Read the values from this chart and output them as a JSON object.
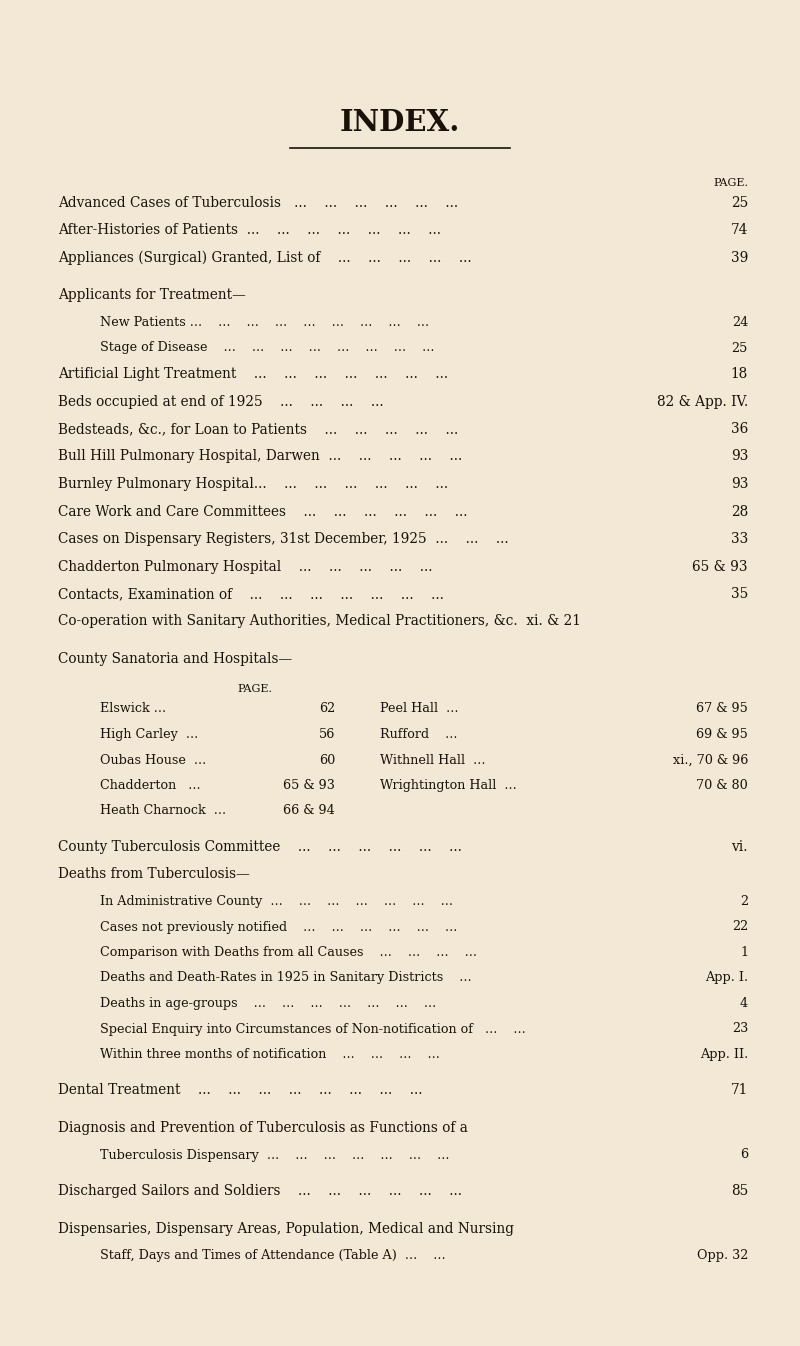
{
  "background_color": "#f2e8d5",
  "title": "INDEX.",
  "text_color": "#1a1208",
  "lines": [
    {
      "type": "header",
      "left": "Advanced Cases of Tuberculosis   ...    ...    ...    ...    ...    ...",
      "right": "25"
    },
    {
      "type": "header",
      "left": "After-Histories of Patients  ...    ...    ...    ...    ...    ...    ...",
      "right": "74"
    },
    {
      "type": "header",
      "left": "Appliances (Surgical) Granted, List of    ...    ...    ...    ...    ...",
      "right": "39"
    },
    {
      "type": "blank",
      "left": "",
      "right": ""
    },
    {
      "type": "header",
      "left": "Applicants for Treatment—",
      "right": ""
    },
    {
      "type": "subitem",
      "left": "New Patients ...    ...    ...    ...    ...    ...    ...    ...    ...",
      "right": "24"
    },
    {
      "type": "subitem",
      "left": "Stage of Disease    ...    ...    ...    ...    ...    ...    ...    ...",
      "right": "25"
    },
    {
      "type": "header",
      "left": "Artificial Light Treatment    ...    ...    ...    ...    ...    ...    ...",
      "right": "18"
    },
    {
      "type": "header",
      "left": "Beds occupied at end of 1925    ...    ...    ...    ...",
      "right": "82 & App. IV."
    },
    {
      "type": "header",
      "left": "Bedsteads, &c., for Loan to Patients    ...    ...    ...    ...    ...",
      "right": "36"
    },
    {
      "type": "header",
      "left": "Bull Hill Pulmonary Hospital, Darwen  ...    ...    ...    ...    ...",
      "right": "93"
    },
    {
      "type": "header",
      "left": "Burnley Pulmonary Hospital...    ...    ...    ...    ...    ...    ...",
      "right": "93"
    },
    {
      "type": "header",
      "left": "Care Work and Care Committees    ...    ...    ...    ...    ...    ...",
      "right": "28"
    },
    {
      "type": "header",
      "left": "Cases on Dispensary Registers, 31st December, 1925  ...    ...    ...",
      "right": "33"
    },
    {
      "type": "header",
      "left": "Chadderton Pulmonary Hospital    ...    ...    ...    ...    ...",
      "right": "65 & 93"
    },
    {
      "type": "header",
      "left": "Contacts, Examination of    ...    ...    ...    ...    ...    ...    ...",
      "right": "35"
    },
    {
      "type": "header",
      "left": "Co-operation with Sanitary Authorities, Medical Practitioners, &c.  xi. & 21",
      "right": ""
    },
    {
      "type": "blank",
      "left": "",
      "right": ""
    },
    {
      "type": "header",
      "left": "County Sanatoria and Hospitals—",
      "right": ""
    },
    {
      "type": "blank_small",
      "left": "",
      "right": ""
    },
    {
      "type": "two_col_header",
      "left": "",
      "right": ""
    },
    {
      "type": "two_col",
      "lcol": "Elswick ...",
      "lpage": "62",
      "rcol": "Peel Hall  ...",
      "rpage": "67 & 95"
    },
    {
      "type": "two_col",
      "lcol": "High Carley  ...",
      "lpage": "56",
      "rcol": "Rufford    ...",
      "rpage": "69 & 95"
    },
    {
      "type": "two_col",
      "lcol": "Oubas House  ...",
      "lpage": "60",
      "rcol": "Withnell Hall  ...",
      "rpage": "xi., 70 & 96"
    },
    {
      "type": "two_col",
      "lcol": "Chadderton   ...",
      "lpage": "65 & 93",
      "rcol": "Wrightington Hall  ...",
      "rpage": "70 & 80"
    },
    {
      "type": "two_col_half",
      "lcol": "Heath Charnock  ...",
      "lpage": "66 & 94"
    },
    {
      "type": "blank",
      "left": "",
      "right": ""
    },
    {
      "type": "header",
      "left": "County Tuberculosis Committee    ...    ...    ...    ...    ...    ...",
      "right": "vi."
    },
    {
      "type": "header",
      "left": "Deaths from Tuberculosis—",
      "right": ""
    },
    {
      "type": "subitem",
      "left": "In Administrative County  ...    ...    ...    ...    ...    ...    ...",
      "right": "2"
    },
    {
      "type": "subitem",
      "left": "Cases not previously notified    ...    ...    ...    ...    ...    ...",
      "right": "22"
    },
    {
      "type": "subitem",
      "left": "Comparison with Deaths from all Causes    ...    ...    ...    ...",
      "right": "1"
    },
    {
      "type": "subitem",
      "left": "Deaths and Death-Rates in 1925 in Sanitary Districts    ...",
      "right": "App. I."
    },
    {
      "type": "subitem",
      "left": "Deaths in age-groups    ...    ...    ...    ...    ...    ...    ...",
      "right": "4"
    },
    {
      "type": "subitem",
      "left": "Special Enquiry into Circumstances of Non-notification of   ...    ...",
      "right": "23"
    },
    {
      "type": "subitem",
      "left": "Within three months of notification    ...    ...    ...    ...",
      "right": "App. II."
    },
    {
      "type": "blank",
      "left": "",
      "right": ""
    },
    {
      "type": "header",
      "left": "Dental Treatment    ...    ...    ...    ...    ...    ...    ...    ...",
      "right": "71"
    },
    {
      "type": "blank",
      "left": "",
      "right": ""
    },
    {
      "type": "header",
      "left": "Diagnosis and Prevention of Tuberculosis as Functions of a",
      "right": ""
    },
    {
      "type": "subitem",
      "left": "Tuberculosis Dispensary  ...    ...    ...    ...    ...    ...    ...",
      "right": "6"
    },
    {
      "type": "blank",
      "left": "",
      "right": ""
    },
    {
      "type": "header",
      "left": "Discharged Sailors and Soldiers    ...    ...    ...    ...    ...    ...",
      "right": "85"
    },
    {
      "type": "blank",
      "left": "",
      "right": ""
    },
    {
      "type": "header",
      "left": "Dispensaries, Dispensary Areas, Population, Medical and Nursing",
      "right": ""
    },
    {
      "type": "subitem_right",
      "left": "Staff, Days and Times of Attendance (Table A)  ...    ...",
      "right": "Opp. 32"
    }
  ]
}
